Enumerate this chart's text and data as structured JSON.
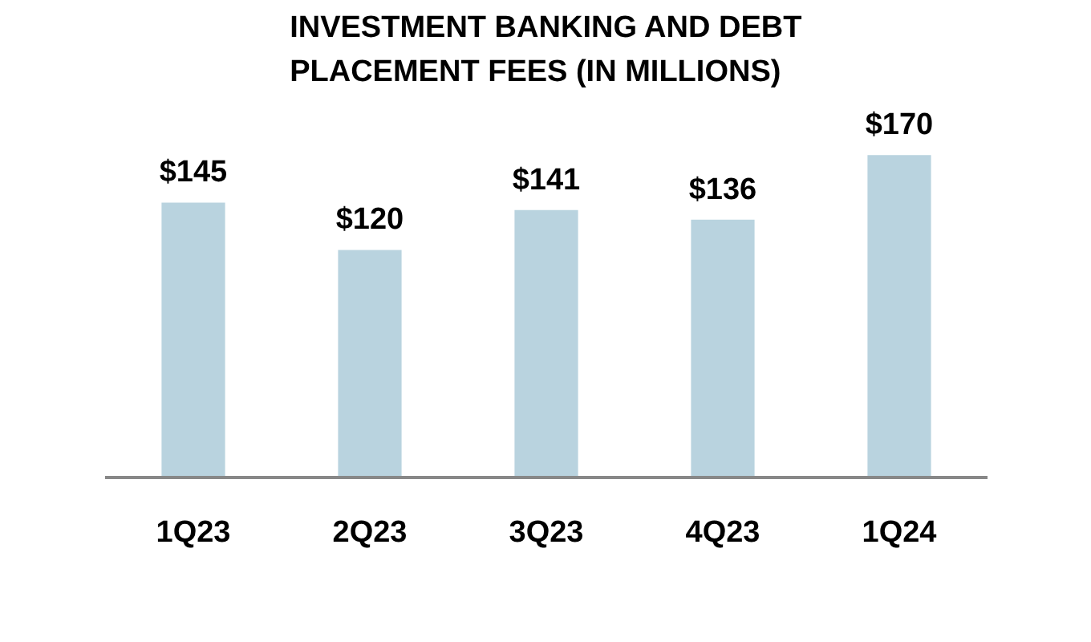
{
  "chart_data": {
    "type": "bar",
    "title": "INVESTMENT BANKING AND DEBT PLACEMENT FEES (IN MILLIONS)",
    "categories": [
      "1Q23",
      "2Q23",
      "3Q23",
      "4Q23",
      "1Q24"
    ],
    "values": [
      145,
      120,
      141,
      136,
      170
    ],
    "value_labels": [
      "$145",
      "$120",
      "$141",
      "$136",
      "$170"
    ],
    "color": "#b9d3df",
    "tick_labels": "x",
    "grid": false
  }
}
